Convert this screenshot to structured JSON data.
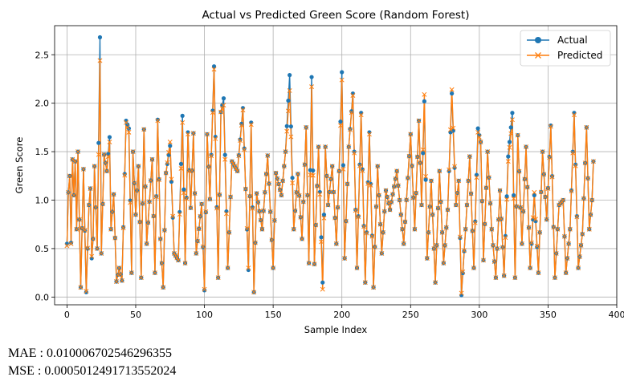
{
  "chart_data": {
    "type": "line",
    "title": "Actual vs Predicted Green Score (Random Forest)",
    "xlabel": "Sample Index",
    "ylabel": "Green Score",
    "xlim": [
      -9,
      400
    ],
    "ylim": [
      -0.08,
      2.8
    ],
    "xticks": [
      0,
      50,
      100,
      150,
      200,
      250,
      300,
      350,
      400
    ],
    "yticks": [
      0.0,
      0.5,
      1.0,
      1.5,
      2.0,
      2.5
    ],
    "xtick_labels": [
      "0",
      "50",
      "100",
      "150",
      "200",
      "250",
      "300",
      "350",
      "400"
    ],
    "ytick_labels": [
      "0.0",
      "0.5",
      "1.0",
      "1.5",
      "2.0",
      "2.5"
    ],
    "grid": true,
    "legend_position": "top-right",
    "series": [
      {
        "name": "Actual",
        "color": "#1f77b4",
        "marker": "circle"
      },
      {
        "name": "Predicted",
        "color": "#ff7f0e",
        "marker": "x"
      }
    ],
    "n_points": 384,
    "anchors_x": [
      0,
      1,
      2,
      3,
      4,
      5,
      6,
      7,
      8,
      10,
      12,
      14,
      16,
      17,
      18,
      19,
      20,
      22,
      24,
      25,
      27,
      29,
      31,
      32,
      34,
      36,
      38,
      40,
      43,
      45,
      47,
      48,
      50,
      52,
      54,
      56,
      58,
      62,
      64,
      66,
      68,
      70,
      72,
      75,
      78,
      81,
      84,
      86,
      88,
      90,
      92,
      94,
      98,
      100,
      102,
      104,
      107,
      110,
      112,
      114,
      117,
      120,
      124,
      128,
      132,
      134,
      136,
      138,
      142,
      146,
      150,
      152,
      156,
      159,
      162,
      165,
      168,
      171,
      174,
      176,
      178,
      180,
      183,
      186,
      188,
      190,
      193,
      196,
      198,
      200,
      202,
      205,
      208,
      211,
      214,
      217,
      220,
      223,
      226,
      229,
      232,
      235,
      240,
      245,
      250,
      253,
      256,
      258,
      260,
      262,
      265,
      268,
      271,
      274,
      277,
      280,
      283,
      285,
      287,
      290,
      293,
      296,
      299,
      301,
      303,
      306,
      309,
      312,
      315,
      318,
      321,
      324,
      326,
      328,
      331,
      334,
      337,
      340,
      343,
      346,
      349,
      352,
      355,
      358,
      361,
      363,
      366,
      369,
      372,
      375,
      378,
      380,
      382,
      383
    ],
    "actual": [
      0.55,
      1.08,
      1.25,
      0.56,
      1.42,
      1.05,
      1.4,
      0.7,
      1.5,
      0.1,
      1.32,
      0.05,
      0.95,
      1.12,
      0.4,
      0.6,
      1.35,
      0.5,
      2.68,
      0.45,
      1.47,
      1.3,
      1.65,
      0.7,
      1.06,
      0.16,
      0.3,
      0.17,
      1.82,
      1.74,
      0.25,
      1.5,
      0.85,
      1.35,
      0.2,
      1.73,
      0.55,
      1.42,
      0.25,
      1.83,
      0.6,
      0.1,
      1.28,
      1.56,
      0.45,
      0.38,
      1.87,
      0.35,
      1.7,
      0.92,
      1.69,
      0.45,
      0.96,
      0.07,
      1.68,
      1.01,
      2.38,
      0.2,
      1.91,
      2.05,
      0.3,
      1.4,
      1.3,
      1.95,
      0.28,
      1.8,
      0.05,
      1.07,
      0.7,
      1.46,
      0.3,
      1.28,
      1.05,
      1.5,
      2.29,
      0.7,
      1.27,
      0.6,
      1.75,
      0.35,
      2.27,
      0.34,
      1.55,
      0.15,
      1.55,
      0.95,
      1.35,
      0.55,
      1.3,
      2.32,
      0.4,
      1.55,
      2.1,
      0.3,
      1.9,
      0.15,
      1.7,
      0.1,
      1.35,
      0.45,
      1.1,
      0.9,
      1.3,
      0.55,
      1.68,
      0.7,
      1.82,
      0.95,
      2.02,
      0.4,
      1.2,
      0.15,
      1.3,
      0.35,
      0.9,
      2.1,
      0.95,
      1.2,
      0.02,
      0.7,
      1.45,
      0.3,
      1.74,
      1.6,
      0.38,
      1.5,
      0.7,
      0.2,
      1.1,
      0.22,
      1.45,
      1.9,
      0.2,
      1.67,
      0.55,
      1.55,
      0.3,
      1.05,
      0.25,
      1.5,
      0.8,
      1.77,
      0.2,
      0.95,
      1.0,
      0.25,
      0.7,
      1.9,
      0.3,
      0.65,
      1.75,
      0.7,
      1.0,
      1.4,
      1.15
    ],
    "predicted": [
      0.53,
      1.08,
      1.25,
      0.55,
      1.42,
      1.05,
      1.4,
      0.7,
      1.5,
      0.1,
      1.32,
      0.06,
      0.95,
      1.12,
      0.42,
      0.6,
      1.35,
      0.5,
      2.44,
      0.45,
      1.47,
      1.3,
      1.6,
      0.7,
      1.06,
      0.16,
      0.3,
      0.17,
      1.8,
      1.7,
      0.25,
      1.5,
      0.85,
      1.35,
      0.2,
      1.73,
      0.55,
      1.42,
      0.25,
      1.82,
      0.6,
      0.1,
      1.28,
      1.6,
      0.45,
      0.38,
      1.8,
      0.35,
      1.68,
      0.92,
      1.69,
      0.45,
      0.96,
      0.08,
      1.68,
      1.01,
      2.35,
      0.2,
      1.91,
      1.98,
      0.3,
      1.4,
      1.3,
      1.93,
      0.3,
      1.78,
      0.05,
      1.07,
      0.7,
      1.46,
      0.3,
      1.28,
      1.05,
      1.5,
      2.13,
      0.7,
      1.27,
      0.6,
      1.75,
      0.35,
      2.17,
      0.34,
      1.55,
      0.08,
      1.55,
      0.95,
      1.35,
      0.55,
      1.3,
      2.24,
      0.4,
      1.55,
      2.08,
      0.3,
      1.88,
      0.15,
      1.68,
      0.1,
      1.35,
      0.45,
      1.1,
      0.9,
      1.3,
      0.55,
      1.68,
      0.7,
      1.82,
      0.95,
      2.09,
      0.4,
      1.2,
      0.15,
      1.3,
      0.35,
      0.9,
      2.14,
      0.95,
      1.2,
      0.04,
      0.7,
      1.45,
      0.3,
      1.7,
      1.6,
      0.38,
      1.5,
      0.7,
      0.2,
      1.1,
      0.22,
      1.4,
      1.83,
      0.2,
      1.67,
      0.55,
      1.55,
      0.3,
      1.08,
      0.25,
      1.5,
      0.8,
      1.76,
      0.2,
      0.95,
      1.0,
      0.25,
      0.7,
      1.88,
      0.3,
      0.65,
      1.75,
      0.7,
      1.0,
      1.4,
      1.15
    ]
  },
  "metrics": {
    "mae": "MAE : 0.010006702546296355",
    "mse": "MSE : 0.0005012491713552024"
  }
}
